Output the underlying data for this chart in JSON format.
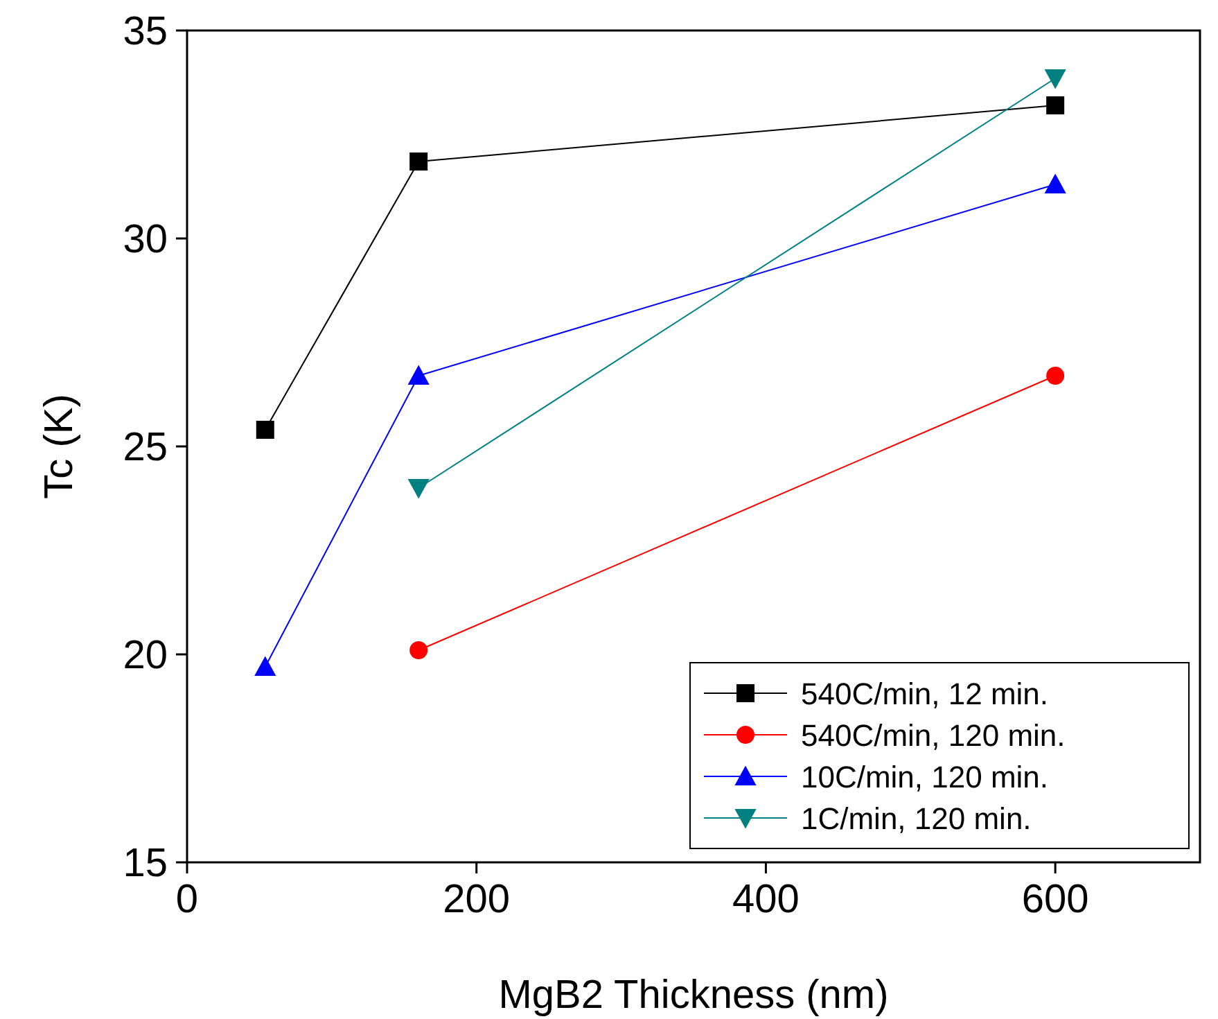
{
  "chart_data": {
    "type": "line",
    "xlabel": "MgB2 Thickness (nm)",
    "ylabel": "Tc (K)",
    "xlim": [
      0,
      700
    ],
    "xticks": [
      0,
      200,
      400,
      600
    ],
    "ylim": [
      15,
      35
    ],
    "yticks": [
      15,
      20,
      25,
      30,
      35
    ],
    "grid": false,
    "legend": "bottom right",
    "line_style": "solid",
    "series": [
      {
        "name": "540C/min, 12 min.",
        "color": "#000000",
        "marker": "square",
        "x": [
          54,
          160,
          600
        ],
        "values": [
          25.4,
          31.85,
          33.2
        ]
      },
      {
        "name": "540C/min, 120 min.",
        "color": "#ff0000",
        "marker": "circle",
        "x": [
          160,
          600
        ],
        "values": [
          20.1,
          26.7
        ]
      },
      {
        "name": "10C/min, 120 min.",
        "color": "#0000ff",
        "marker": "triangle",
        "x": [
          54,
          160,
          600
        ],
        "values": [
          19.7,
          26.7,
          31.3
        ]
      },
      {
        "name": "1C/min, 120 min.",
        "color": "#008080",
        "marker": "triangle-down",
        "x": [
          160,
          600
        ],
        "values": [
          24.0,
          33.85
        ]
      }
    ]
  }
}
